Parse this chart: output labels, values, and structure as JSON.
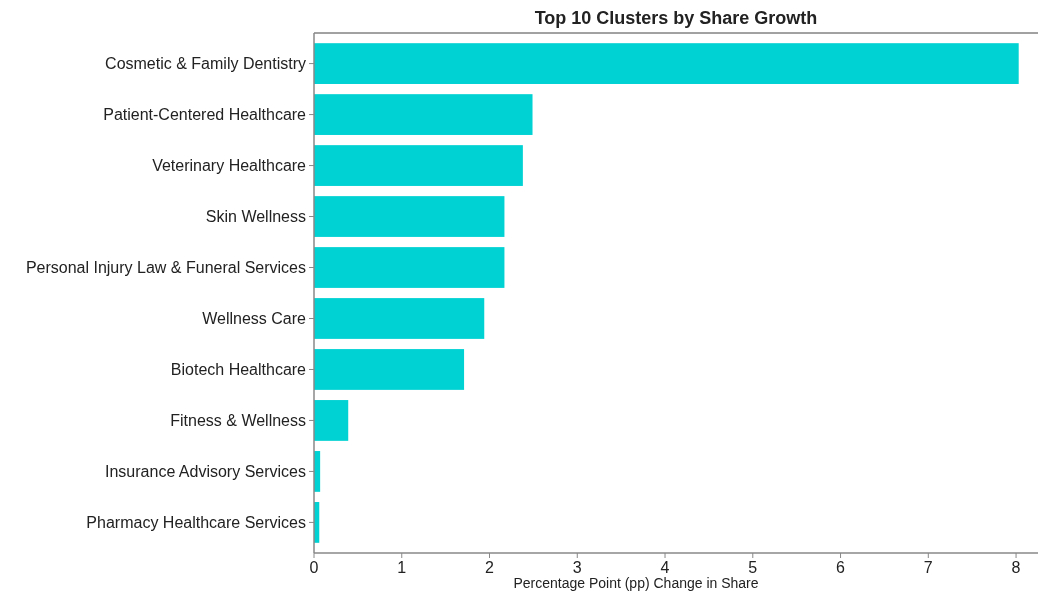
{
  "chart_data": {
    "type": "bar",
    "orientation": "horizontal",
    "title": "Top 10 Clusters by Share Growth",
    "xlabel": "Percentage Point (pp) Change in Share",
    "categories": [
      "Cosmetic & Family Dentistry",
      "Patient-Centered Healthcare",
      "Veterinary Healthcare",
      "Skin Wellness",
      "Personal Injury Law & Funeral Services",
      "Wellness Care",
      "Biotech Healthcare",
      "Fitness & Wellness",
      "Insurance Advisory Services",
      "Pharmacy Healthcare Services"
    ],
    "values": [
      8.03,
      2.49,
      2.38,
      2.17,
      2.17,
      1.94,
      1.71,
      0.39,
      0.07,
      0.06
    ],
    "color": "#00d1d3",
    "xlim": [
      0,
      8.25
    ],
    "xticks": [
      0,
      1,
      2,
      3,
      4,
      5,
      6,
      7,
      8
    ],
    "grid": false
  }
}
